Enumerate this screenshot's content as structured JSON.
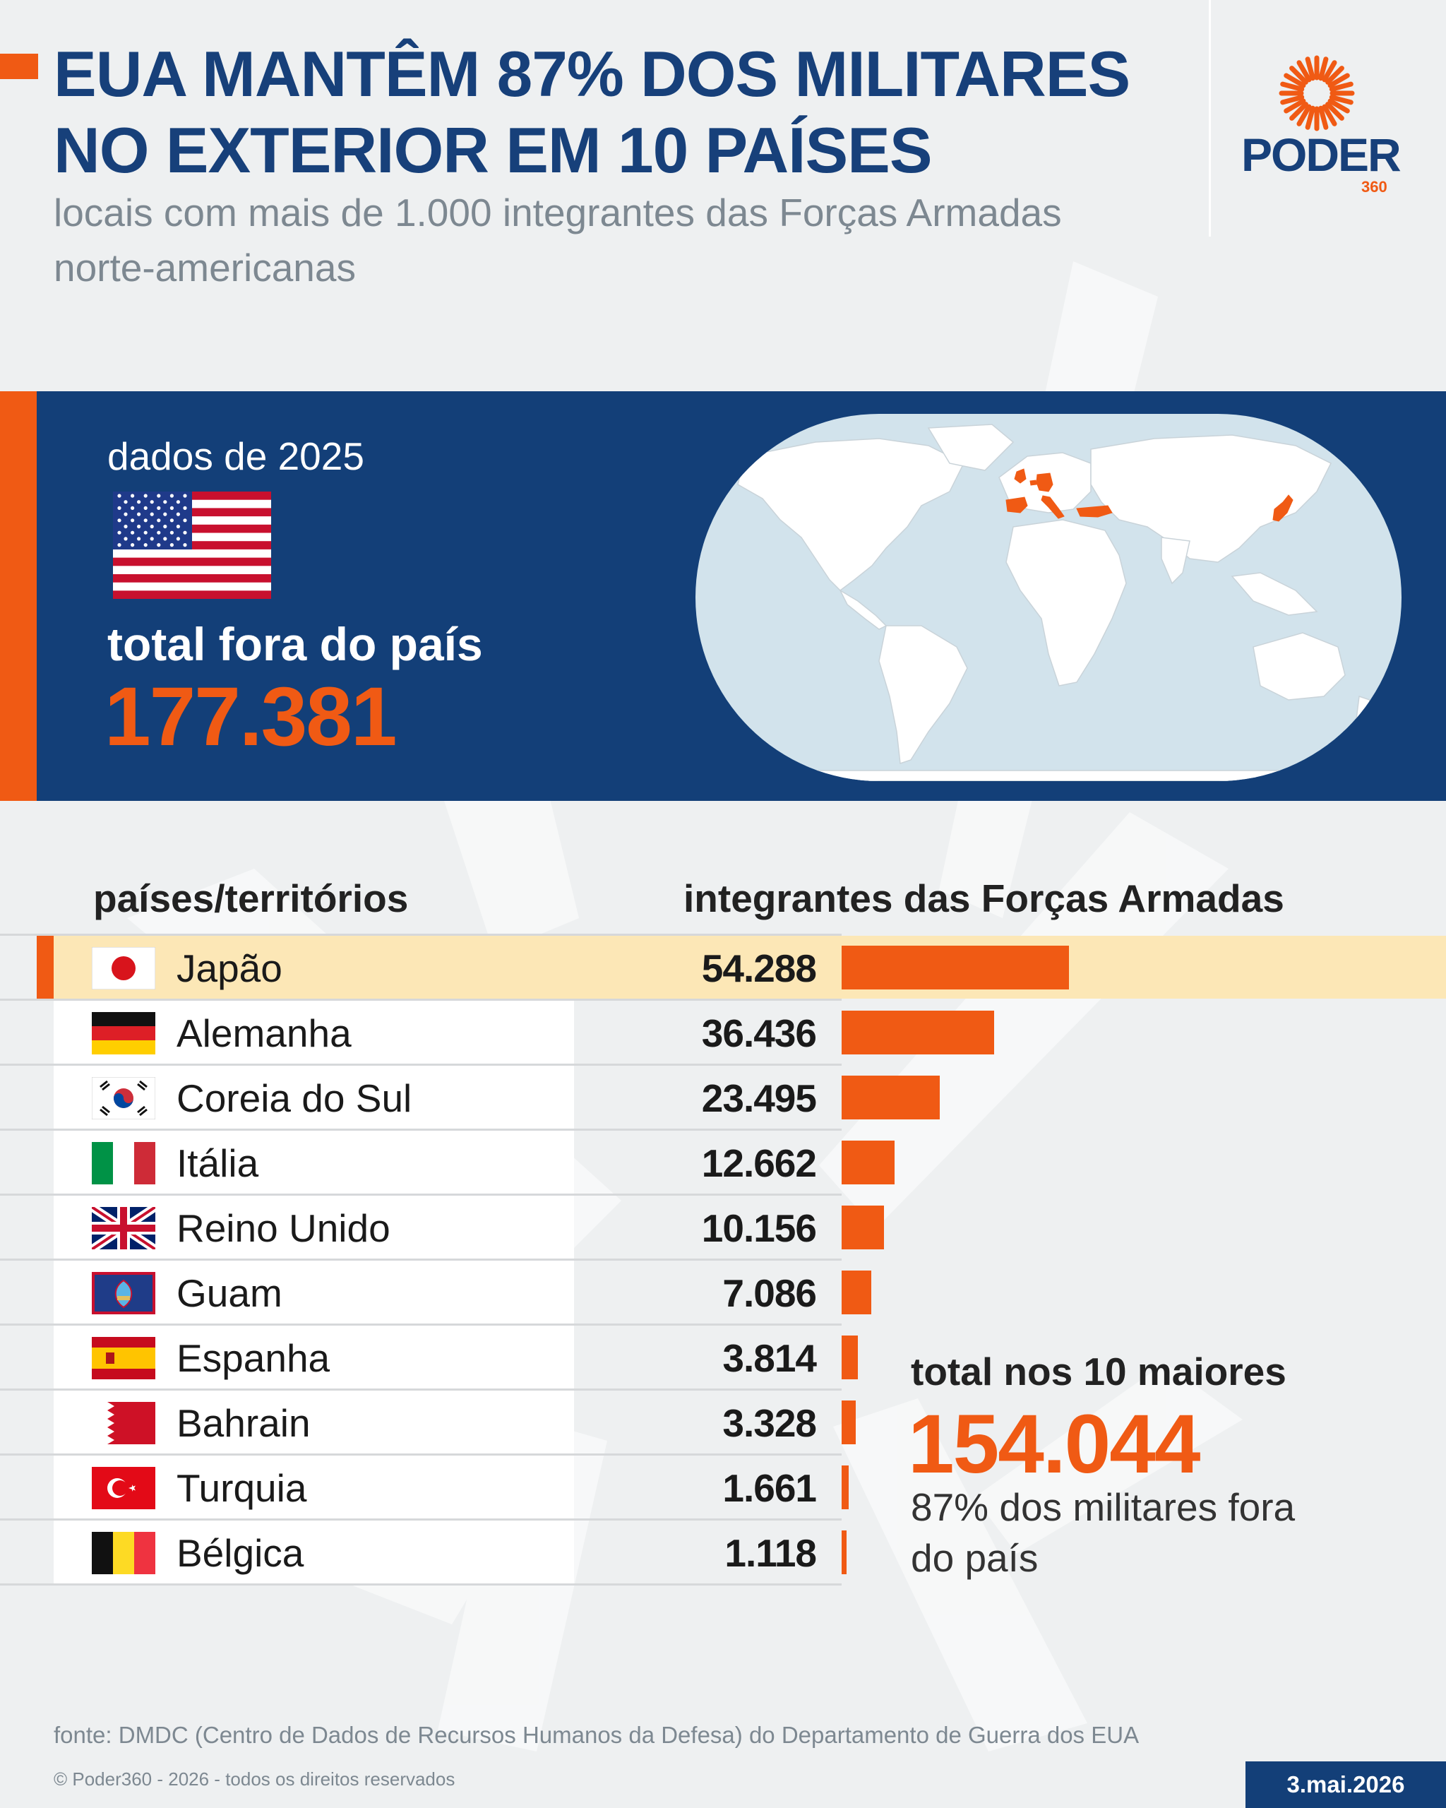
{
  "header": {
    "title": "EUA MANTÊM 87% DOS MILITARES NO EXTERIOR EM 10 PAÍSES",
    "subtitle": "locais com mais de 1.000 integrantes das Forças Armadas norte-americanas"
  },
  "logo": {
    "word": "PODER",
    "number": "360"
  },
  "summary_panel": {
    "year_label": "dados de 2025",
    "total_label": "total fora do país",
    "total_value": "177.381",
    "highlighted_countries_on_map": [
      "Japão",
      "Alemanha",
      "Itália",
      "Reino Unido",
      "Espanha",
      "Turquia",
      "Bélgica"
    ]
  },
  "table": {
    "col_countries": "países/territórios",
    "col_values": "integrantes das Forças Armadas"
  },
  "chart_data": {
    "type": "bar",
    "orientation": "horizontal",
    "categories": [
      "Japão",
      "Alemanha",
      "Coreia do Sul",
      "Itália",
      "Reino Unido",
      "Guam",
      "Espanha",
      "Bahrain",
      "Turquia",
      "Bélgica"
    ],
    "values": [
      54288,
      36436,
      23495,
      12662,
      10156,
      7086,
      3814,
      3328,
      1661,
      1118
    ],
    "value_labels": [
      "54.288",
      "36.436",
      "23.495",
      "12.662",
      "10.156",
      "7.086",
      "3.814",
      "3.328",
      "1.661",
      "1.118"
    ],
    "highlighted_category": "Japão",
    "bar_color": "#f05a14",
    "grid": false,
    "legend": "none"
  },
  "rows_meta": [
    {
      "flag": "japan-flag"
    },
    {
      "flag": "germany-flag"
    },
    {
      "flag": "south-korea-flag"
    },
    {
      "flag": "italy-flag"
    },
    {
      "flag": "united-kingdom-flag"
    },
    {
      "flag": "guam-flag"
    },
    {
      "flag": "spain-flag"
    },
    {
      "flag": "bahrain-flag"
    },
    {
      "flag": "turkey-flag"
    },
    {
      "flag": "belgium-flag"
    }
  ],
  "top10_summary": {
    "label": "total nos 10 maiores",
    "value": "154.044",
    "note": "87% dos militares fora do país"
  },
  "footer": {
    "source": "fonte: DMDC (Centro de Dados de Recursos Humanos da Defesa) do Departamento de Guerra dos EUA",
    "copyright": "© Poder360 - 2026 - todos os direitos reservados",
    "date": "3.mai.2026"
  },
  "colors": {
    "navy": "#133f78",
    "title_blue": "#17407a",
    "orange": "#f05a14",
    "highlight_row": "#fce7b6",
    "map_ocean": "#d2e3ec"
  }
}
